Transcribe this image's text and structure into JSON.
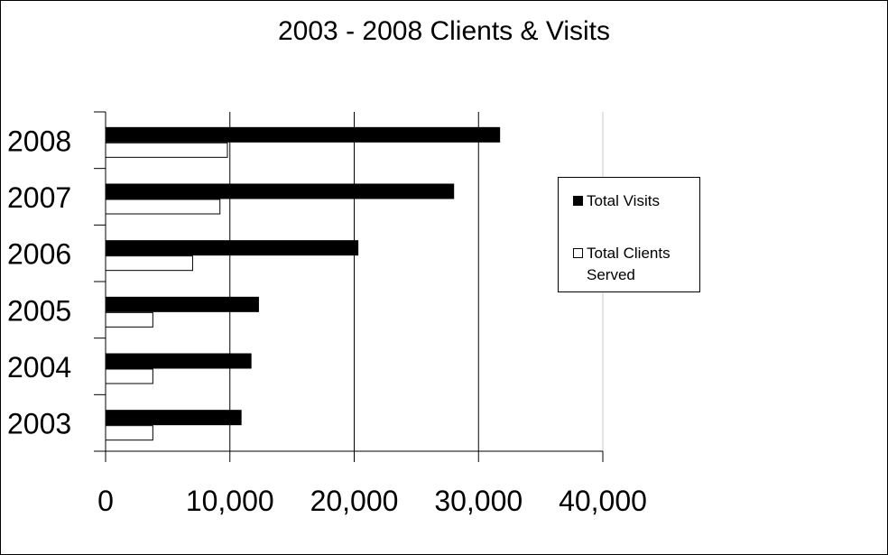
{
  "chart_data": {
    "type": "bar",
    "orientation": "horizontal",
    "title": "2003 - 2008 Clients & Visits",
    "categories": [
      "2003",
      "2004",
      "2005",
      "2006",
      "2007",
      "2008"
    ],
    "series": [
      {
        "name": "Total Visits",
        "color": "#000000",
        "values": [
          10900,
          11700,
          12300,
          20300,
          28000,
          31700
        ]
      },
      {
        "name": "Total Clients Served",
        "color": "#ffffff",
        "values": [
          3800,
          3800,
          3800,
          7000,
          9200,
          9800
        ]
      }
    ],
    "xlim": [
      0,
      40000
    ],
    "x_ticks": [
      "0",
      "10,000",
      "20,000",
      "30,000",
      "40,000"
    ],
    "grid": true,
    "legend_position": "right"
  }
}
